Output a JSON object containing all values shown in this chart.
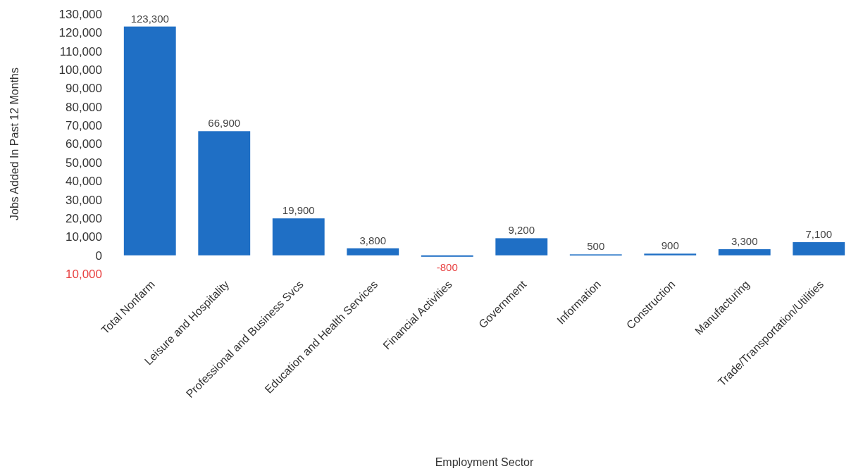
{
  "chart_data": {
    "type": "bar",
    "xlabel": "Employment Sector",
    "ylabel": "Jobs Added In Past 12 Months",
    "categories": [
      "Total Nonfarm",
      "Leisure and Hospitality",
      "Professional and Business Svcs",
      "Education and Health Services",
      "Financial Activities",
      "Government",
      "Information",
      "Construction",
      "Manufacturing",
      "Trade/Transportation/Utilities"
    ],
    "values": [
      123300,
      66900,
      19900,
      3800,
      -800,
      9200,
      500,
      900,
      3300,
      7100
    ],
    "value_labels": [
      "123,300",
      "66,900",
      "19,900",
      "3,800",
      "-800",
      "9,200",
      "500",
      "900",
      "3,300",
      "7,100"
    ],
    "color": "#1f6fc5",
    "ylim": [
      -10000,
      130000
    ],
    "yticks": [
      {
        "value": -10000,
        "label": "10,000"
      },
      0,
      {
        "value": 10000,
        "label": "10,000"
      },
      {
        "value": 20000,
        "label": "20,000"
      },
      {
        "value": 30000,
        "label": "30,000"
      },
      {
        "value": 40000,
        "label": "40,000"
      },
      {
        "value": 50000,
        "label": "50,000"
      },
      {
        "value": 60000,
        "label": "60,000"
      },
      {
        "value": 70000,
        "label": "70,000"
      },
      {
        "value": 80000,
        "label": "80,000"
      },
      {
        "value": 90000,
        "label": "90,000"
      },
      {
        "value": 100000,
        "label": "100,000"
      },
      {
        "value": 110000,
        "label": "110,000"
      },
      {
        "value": 120000,
        "label": "120,000"
      },
      {
        "value": 130000,
        "label": "130,000"
      }
    ]
  }
}
